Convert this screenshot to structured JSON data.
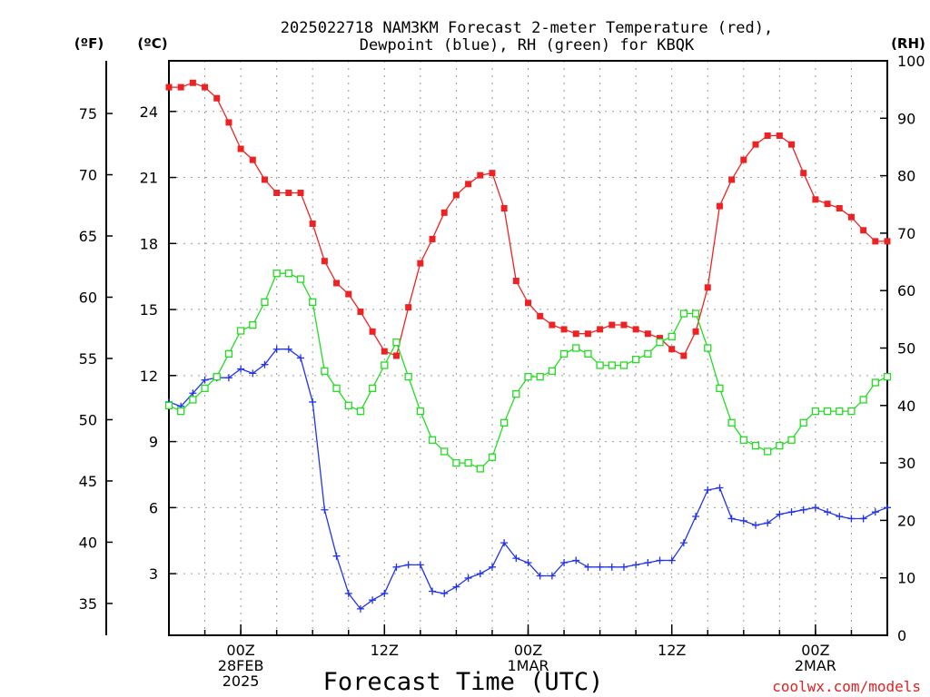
{
  "title_line1": "2025022718 NAM3KM Forecast 2-meter Temperature (red),",
  "title_line2": "Dewpoint (blue), RH (green) for KBQK",
  "units": {
    "f": "(ºF)",
    "c": "(ºC)",
    "rh": "(RH)"
  },
  "xlabel": "Forecast Time (UTC)",
  "credit": "coolwx.com/models",
  "x_ticks": [
    {
      "hour": 6,
      "lines": [
        "00Z",
        "28FEB",
        "2025"
      ]
    },
    {
      "hour": 18,
      "lines": [
        "12Z"
      ]
    },
    {
      "hour": 30,
      "lines": [
        "00Z",
        "1MAR"
      ]
    },
    {
      "hour": 42,
      "lines": [
        "12Z"
      ]
    },
    {
      "hour": 54,
      "lines": [
        "00Z",
        "2MAR"
      ]
    }
  ],
  "colors": {
    "temperature": "#ee2222",
    "dewpoint": "#2233ee",
    "rh": "#22dd22",
    "credit": "#dd2222"
  },
  "chart_data": {
    "type": "line",
    "x_unit": "forecast hour",
    "x": [
      0,
      1,
      2,
      3,
      4,
      5,
      6,
      7,
      8,
      9,
      10,
      11,
      12,
      13,
      14,
      15,
      16,
      17,
      18,
      19,
      20,
      21,
      22,
      23,
      24,
      25,
      26,
      27,
      28,
      29,
      30,
      31,
      32,
      33,
      34,
      35,
      36,
      37,
      38,
      39,
      40,
      41,
      42,
      43,
      44,
      45,
      46,
      47,
      48,
      49,
      50,
      51,
      52,
      53,
      54,
      55,
      56,
      57,
      58,
      59,
      60
    ],
    "xlim": [
      0,
      60
    ],
    "left_axis_c": {
      "label": "(ºC)",
      "ticks": [
        3,
        6,
        9,
        12,
        15,
        18,
        21,
        24
      ],
      "range": [
        0.2,
        26.3
      ]
    },
    "left_axis_f": {
      "label": "(ºF)",
      "ticks": [
        35,
        40,
        45,
        50,
        55,
        60,
        65,
        70,
        75
      ],
      "range": [
        32.4,
        79.3
      ]
    },
    "right_axis_rh": {
      "label": "(RH)",
      "ticks": [
        0,
        10,
        20,
        30,
        40,
        50,
        60,
        70,
        80,
        90,
        100
      ],
      "range": [
        0,
        100
      ]
    },
    "grid": true,
    "series": [
      {
        "name": "Temperature",
        "axis": "C",
        "marker": "filled-square",
        "values": [
          25.1,
          25.1,
          25.3,
          25.1,
          24.6,
          23.5,
          22.3,
          21.8,
          20.9,
          20.3,
          20.3,
          20.3,
          18.9,
          17.2,
          16.2,
          15.7,
          14.9,
          14.0,
          13.1,
          12.9,
          15.1,
          17.1,
          18.2,
          19.4,
          20.2,
          20.7,
          21.1,
          21.2,
          19.6,
          16.3,
          15.3,
          14.7,
          14.3,
          14.1,
          13.9,
          13.9,
          14.1,
          14.3,
          14.3,
          14.1,
          13.9,
          13.7,
          13.2,
          12.9,
          14.0,
          16.0,
          19.7,
          20.9,
          21.8,
          22.5,
          22.9,
          22.9,
          22.5,
          21.2,
          20.0,
          19.8,
          19.6,
          19.2,
          18.6,
          18.1,
          18.1
        ]
      },
      {
        "name": "Dewpoint",
        "axis": "C",
        "marker": "plus",
        "values": [
          10.8,
          10.6,
          11.2,
          11.8,
          11.9,
          11.9,
          12.3,
          12.1,
          12.5,
          13.2,
          13.2,
          12.8,
          10.8,
          5.9,
          3.8,
          2.1,
          1.4,
          1.8,
          2.1,
          3.3,
          3.4,
          3.4,
          2.2,
          2.1,
          2.4,
          2.8,
          3.0,
          3.3,
          4.4,
          3.7,
          3.5,
          2.9,
          2.9,
          3.5,
          3.6,
          3.3,
          3.3,
          3.3,
          3.3,
          3.4,
          3.5,
          3.6,
          3.6,
          4.4,
          5.6,
          6.8,
          6.9,
          5.5,
          5.4,
          5.2,
          5.3,
          5.7,
          5.8,
          5.9,
          6.0,
          5.8,
          5.6,
          5.5,
          5.5,
          5.8,
          6.0
        ]
      },
      {
        "name": "RH",
        "axis": "RH",
        "marker": "open-square",
        "values": [
          40,
          39,
          41,
          43,
          45,
          49,
          53,
          54,
          58,
          63,
          63,
          62,
          58,
          46,
          43,
          40,
          39,
          43,
          47,
          51,
          45,
          39,
          34,
          32,
          30,
          30,
          29,
          31,
          37,
          42,
          45,
          45,
          46,
          49,
          50,
          49,
          47,
          47,
          47,
          48,
          49,
          51,
          52,
          56,
          56,
          50,
          43,
          37,
          34,
          33,
          32,
          33,
          34,
          37,
          39,
          39,
          39,
          39,
          41,
          44,
          45
        ]
      }
    ]
  }
}
